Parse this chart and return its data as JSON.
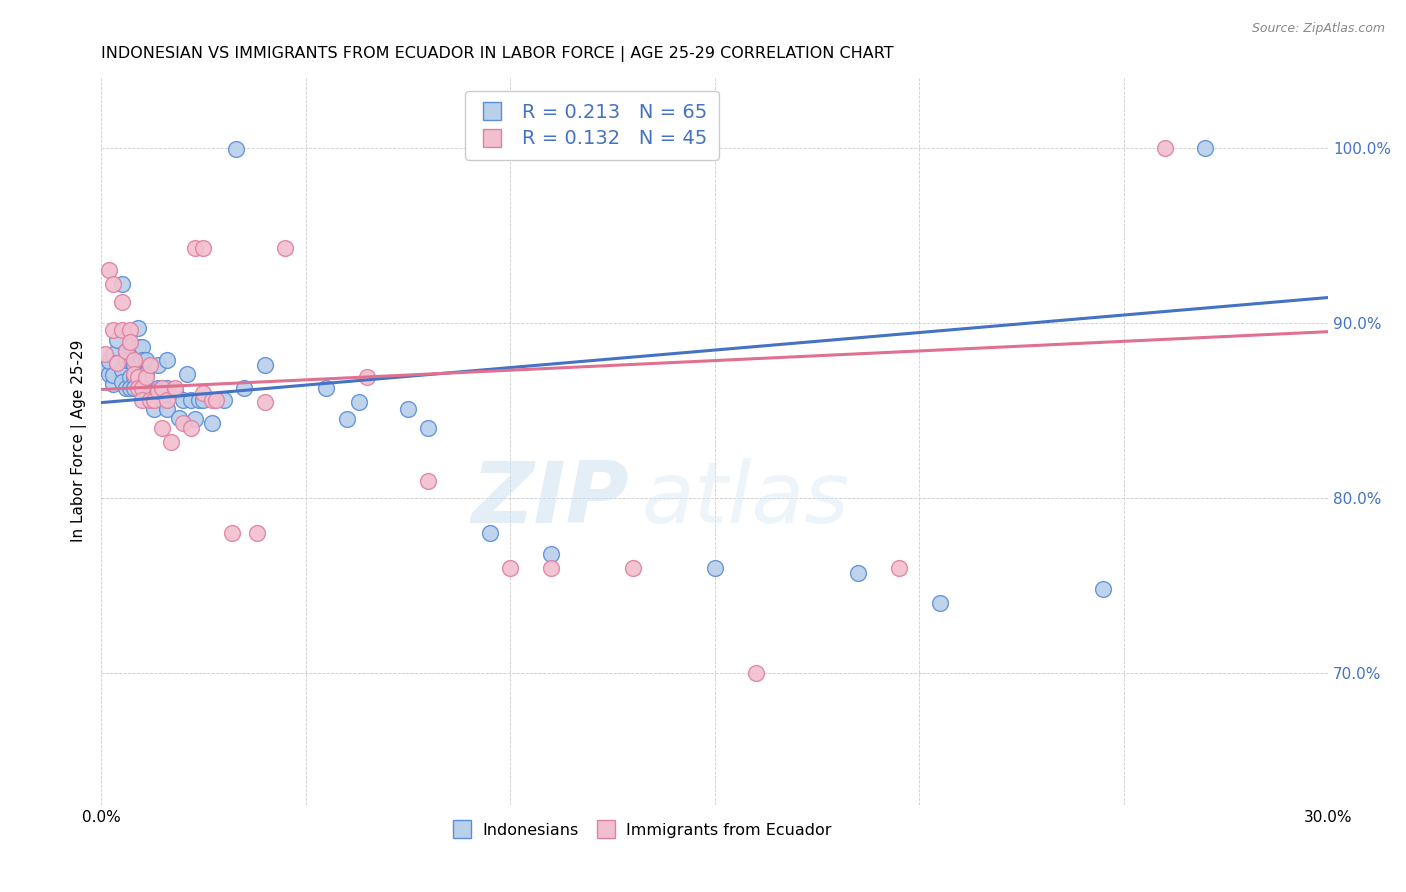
{
  "title": "INDONESIAN VS IMMIGRANTS FROM ECUADOR IN LABOR FORCE | AGE 25-29 CORRELATION CHART",
  "source": "Source: ZipAtlas.com",
  "ylabel": "In Labor Force | Age 25-29",
  "xlim": [
    0.0,
    0.3
  ],
  "ylim": [
    0.625,
    1.04
  ],
  "xticks": [
    0.0,
    0.05,
    0.1,
    0.15,
    0.2,
    0.25,
    0.3
  ],
  "xticklabels": [
    "0.0%",
    "",
    "",
    "",
    "",
    "",
    "30.0%"
  ],
  "yticks": [
    0.7,
    0.8,
    0.9,
    1.0
  ],
  "yticklabels": [
    "70.0%",
    "80.0%",
    "90.0%",
    "100.0%"
  ],
  "blue_color": "#b8d0ea",
  "pink_color": "#f2bfcf",
  "blue_line_color": "#4472c4",
  "pink_line_color": "#e07090",
  "blue_edge_color": "#5b8dd9",
  "pink_edge_color": "#e080a0",
  "legend_R1": "0.213",
  "legend_N1": "65",
  "legend_R2": "0.132",
  "legend_N2": "45",
  "watermark": "ZIPatlas",
  "blue_slope": 0.2,
  "pink_slope": 0.11,
  "blue_intercept": 0.8545,
  "pink_intercept": 0.862,
  "blue_dots": [
    [
      0.001,
      0.874
    ],
    [
      0.002,
      0.871
    ],
    [
      0.002,
      0.878
    ],
    [
      0.003,
      0.882
    ],
    [
      0.003,
      0.865
    ],
    [
      0.003,
      0.87
    ],
    [
      0.004,
      0.877
    ],
    [
      0.004,
      0.89
    ],
    [
      0.005,
      0.922
    ],
    [
      0.005,
      0.873
    ],
    [
      0.005,
      0.866
    ],
    [
      0.006,
      0.884
    ],
    [
      0.006,
      0.879
    ],
    [
      0.006,
      0.863
    ],
    [
      0.007,
      0.887
    ],
    [
      0.007,
      0.879
    ],
    [
      0.007,
      0.869
    ],
    [
      0.007,
      0.863
    ],
    [
      0.008,
      0.869
    ],
    [
      0.008,
      0.876
    ],
    [
      0.008,
      0.863
    ],
    [
      0.009,
      0.897
    ],
    [
      0.009,
      0.886
    ],
    [
      0.009,
      0.876
    ],
    [
      0.01,
      0.886
    ],
    [
      0.01,
      0.879
    ],
    [
      0.01,
      0.871
    ],
    [
      0.011,
      0.879
    ],
    [
      0.011,
      0.871
    ],
    [
      0.012,
      0.861
    ],
    [
      0.012,
      0.856
    ],
    [
      0.013,
      0.861
    ],
    [
      0.013,
      0.851
    ],
    [
      0.014,
      0.876
    ],
    [
      0.014,
      0.863
    ],
    [
      0.015,
      0.863
    ],
    [
      0.015,
      0.856
    ],
    [
      0.016,
      0.879
    ],
    [
      0.016,
      0.863
    ],
    [
      0.016,
      0.851
    ],
    [
      0.018,
      0.861
    ],
    [
      0.019,
      0.846
    ],
    [
      0.02,
      0.856
    ],
    [
      0.021,
      0.871
    ],
    [
      0.022,
      0.856
    ],
    [
      0.023,
      0.845
    ],
    [
      0.024,
      0.856
    ],
    [
      0.025,
      0.856
    ],
    [
      0.027,
      0.843
    ],
    [
      0.03,
      0.856
    ],
    [
      0.033,
      0.999
    ],
    [
      0.035,
      0.863
    ],
    [
      0.04,
      0.876
    ],
    [
      0.055,
      0.863
    ],
    [
      0.06,
      0.845
    ],
    [
      0.063,
      0.855
    ],
    [
      0.075,
      0.851
    ],
    [
      0.08,
      0.84
    ],
    [
      0.095,
      0.78
    ],
    [
      0.11,
      0.768
    ],
    [
      0.15,
      0.76
    ],
    [
      0.185,
      0.757
    ],
    [
      0.205,
      0.74
    ],
    [
      0.245,
      0.748
    ],
    [
      0.27,
      1.0
    ]
  ],
  "pink_dots": [
    [
      0.001,
      0.882
    ],
    [
      0.002,
      0.93
    ],
    [
      0.003,
      0.922
    ],
    [
      0.003,
      0.896
    ],
    [
      0.004,
      0.877
    ],
    [
      0.005,
      0.912
    ],
    [
      0.005,
      0.896
    ],
    [
      0.006,
      0.884
    ],
    [
      0.007,
      0.896
    ],
    [
      0.007,
      0.889
    ],
    [
      0.008,
      0.879
    ],
    [
      0.008,
      0.871
    ],
    [
      0.009,
      0.869
    ],
    [
      0.009,
      0.863
    ],
    [
      0.01,
      0.863
    ],
    [
      0.01,
      0.856
    ],
    [
      0.011,
      0.869
    ],
    [
      0.012,
      0.876
    ],
    [
      0.012,
      0.856
    ],
    [
      0.013,
      0.856
    ],
    [
      0.014,
      0.861
    ],
    [
      0.015,
      0.84
    ],
    [
      0.015,
      0.863
    ],
    [
      0.016,
      0.856
    ],
    [
      0.017,
      0.832
    ],
    [
      0.018,
      0.863
    ],
    [
      0.02,
      0.843
    ],
    [
      0.022,
      0.84
    ],
    [
      0.023,
      0.943
    ],
    [
      0.025,
      0.943
    ],
    [
      0.025,
      0.86
    ],
    [
      0.027,
      0.856
    ],
    [
      0.028,
      0.856
    ],
    [
      0.032,
      0.78
    ],
    [
      0.038,
      0.78
    ],
    [
      0.04,
      0.855
    ],
    [
      0.045,
      0.943
    ],
    [
      0.065,
      0.869
    ],
    [
      0.08,
      0.81
    ],
    [
      0.1,
      0.76
    ],
    [
      0.11,
      0.76
    ],
    [
      0.13,
      0.76
    ],
    [
      0.16,
      0.7
    ],
    [
      0.195,
      0.76
    ],
    [
      0.26,
      1.0
    ]
  ]
}
